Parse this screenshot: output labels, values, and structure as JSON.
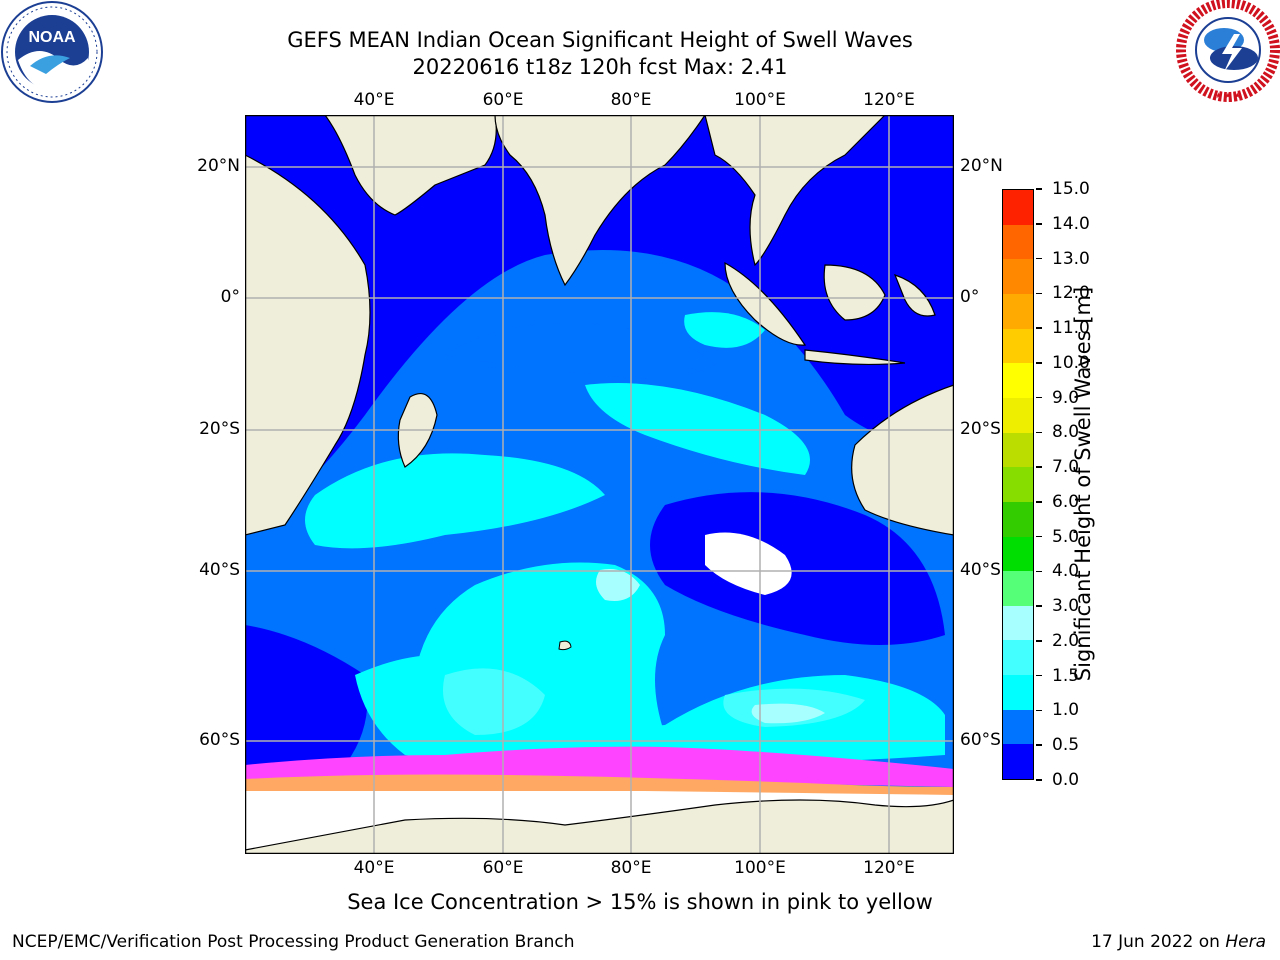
{
  "header": {
    "title_line1": "GEFS MEAN Indian Ocean Significant Height of Swell Waves",
    "title_line2": "20220616 t18z 120h fcst   Max: 2.41"
  },
  "logos": {
    "left": {
      "name": "NOAA",
      "ring_text": "NATIONAL OCEANIC AND ATMOSPHERIC ADMINISTRATION · U.S. DEPARTMENT OF COMMERCE"
    },
    "right": {
      "name": "NATIONAL WEATHER SERVICE"
    }
  },
  "map": {
    "lon_labels": [
      "40°E",
      "60°E",
      "80°E",
      "100°E",
      "120°E"
    ],
    "lat_labels": [
      "20°N",
      "0°",
      "20°S",
      "40°S",
      "60°S"
    ],
    "extent": {
      "lon": [
        20,
        130
      ],
      "lat": [
        -72,
        27
      ]
    },
    "ocean_colors": {
      "deep_blue": "#0000ff",
      "mid_blue": "#0073ff",
      "cyan": "#00ffff",
      "light_cyan": "#44ffff",
      "pale_cyan": "#a8ffff",
      "land": "#efeedb",
      "ice_pink": "#ff44ff",
      "ice_orange": "#ffa864"
    }
  },
  "colorbar": {
    "label": "Significant Height of Swell Waves [m]",
    "ticks": [
      "0.0",
      "0.5",
      "1.0",
      "1.5",
      "2.0",
      "3.0",
      "4.0",
      "5.0",
      "6.0",
      "7.0",
      "8.0",
      "9.0",
      "10.0",
      "11.0",
      "12.0",
      "13.0",
      "14.0",
      "15.0"
    ],
    "colors": [
      "#0000ff",
      "#0073ff",
      "#00ffff",
      "#44ffff",
      "#a8ffff",
      "#55ff77",
      "#00dd00",
      "#33cc00",
      "#88dd00",
      "#bbdd00",
      "#eeee00",
      "#ffff00",
      "#ffcc00",
      "#ffaa00",
      "#ff8800",
      "#ff6600",
      "#ff2200"
    ]
  },
  "notes": {
    "ice": "Sea Ice Concentration > 15% is shown in pink to yellow"
  },
  "footer": {
    "left": "NCEP/EMC/Verification Post Processing Product Generation Branch",
    "date": "17 Jun 2022 on ",
    "host": "Hera"
  }
}
